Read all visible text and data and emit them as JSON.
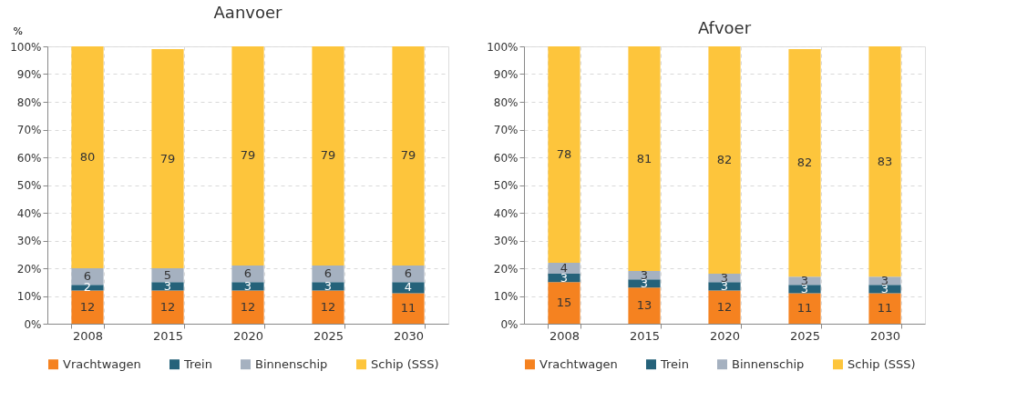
{
  "chart_data": [
    {
      "type": "bar",
      "title": "Aanvoer",
      "ylabel": "%",
      "stacked": true,
      "data_labels": true,
      "grid": true,
      "legend": "bottom",
      "categories": [
        "2008",
        "2015",
        "2020",
        "2025",
        "2030"
      ],
      "ylim": [
        0,
        100
      ],
      "yticks": [
        {
          "value": 0,
          "label": "0%"
        },
        {
          "value": 10,
          "label": "10%"
        },
        {
          "value": 20,
          "label": "20%"
        },
        {
          "value": 30,
          "label": "30%"
        },
        {
          "value": 40,
          "label": "40%"
        },
        {
          "value": 50,
          "label": "50%"
        },
        {
          "value": 60,
          "label": "60%"
        },
        {
          "value": 70,
          "label": "70%"
        },
        {
          "value": 80,
          "label": "80%"
        },
        {
          "value": 90,
          "label": "90%"
        },
        {
          "value": 100,
          "label": "100%"
        }
      ],
      "series": [
        {
          "name": "Vrachtwagen",
          "color": "#f58220",
          "values": [
            12,
            12,
            12,
            12,
            11
          ]
        },
        {
          "name": "Trein",
          "color": "#25627a",
          "values": [
            2,
            3,
            3,
            3,
            4
          ]
        },
        {
          "name": "Binnenschip",
          "color": "#a5b1c0",
          "values": [
            6,
            5,
            6,
            6,
            6
          ]
        },
        {
          "name": "Schip (SSS)",
          "color": "#fdc53c",
          "values": [
            80,
            79,
            79,
            79,
            79
          ]
        }
      ]
    },
    {
      "type": "bar",
      "title": "Afvoer",
      "stacked": true,
      "data_labels": true,
      "grid": true,
      "legend": "bottom",
      "categories": [
        "2008",
        "2015",
        "2020",
        "2025",
        "2030"
      ],
      "ylim": [
        0,
        100
      ],
      "yticks": [
        {
          "value": 0,
          "label": "0%"
        },
        {
          "value": 10,
          "label": "10%"
        },
        {
          "value": 20,
          "label": "20%"
        },
        {
          "value": 30,
          "label": "30%"
        },
        {
          "value": 40,
          "label": "40%"
        },
        {
          "value": 50,
          "label": "50%"
        },
        {
          "value": 60,
          "label": "60%"
        },
        {
          "value": 70,
          "label": "70%"
        },
        {
          "value": 80,
          "label": "80%"
        },
        {
          "value": 90,
          "label": "90%"
        },
        {
          "value": 100,
          "label": "100%"
        }
      ],
      "series": [
        {
          "name": "Vrachtwagen",
          "color": "#f58220",
          "values": [
            15,
            13,
            12,
            11,
            11
          ]
        },
        {
          "name": "Trein",
          "color": "#25627a",
          "values": [
            3,
            3,
            3,
            3,
            3
          ]
        },
        {
          "name": "Binnenschip",
          "color": "#a5b1c0",
          "values": [
            4,
            3,
            3,
            3,
            3
          ]
        },
        {
          "name": "Schip (SSS)",
          "color": "#fdc53c",
          "values": [
            78,
            81,
            82,
            82,
            83
          ]
        }
      ]
    }
  ]
}
